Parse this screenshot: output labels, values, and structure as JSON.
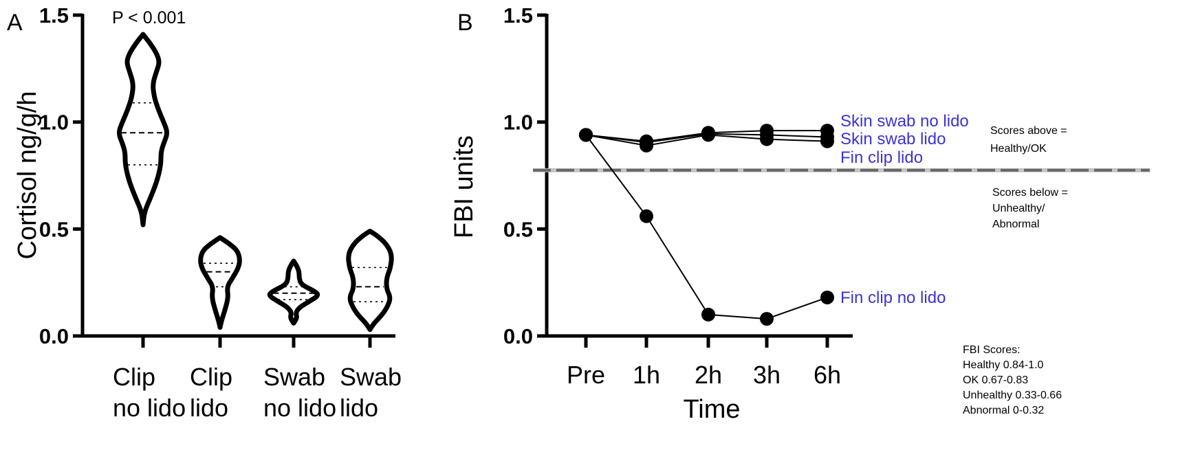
{
  "panels": {
    "a": "A",
    "b": "B"
  },
  "chart_data": [
    {
      "type": "violin",
      "panel": "A",
      "ylabel": "Cortisol ng/g/h",
      "ylim": [
        0,
        1.5
      ],
      "yticks": [
        0.0,
        0.5,
        1.0,
        1.5
      ],
      "ytick_labels": [
        "0.0",
        "0.5",
        "1.0",
        "1.5"
      ],
      "categories": [
        {
          "line1": "Clip",
          "line2": "no lido"
        },
        {
          "line1": "Clip",
          "line2": "lido"
        },
        {
          "line1": "Swab",
          "line2": "no lido"
        },
        {
          "line1": "Swab",
          "line2": "lido"
        }
      ],
      "violins": [
        {
          "min": 0.52,
          "max": 1.41,
          "q1": 0.8,
          "median": 0.95,
          "q3": 1.09,
          "profile": [
            [
              0.52,
              0
            ],
            [
              0.58,
              2
            ],
            [
              0.64,
              10
            ],
            [
              0.72,
              20
            ],
            [
              0.8,
              26
            ],
            [
              0.86,
              26
            ],
            [
              0.9,
              30
            ],
            [
              0.95,
              36
            ],
            [
              1.0,
              30
            ],
            [
              1.06,
              22
            ],
            [
              1.12,
              16
            ],
            [
              1.18,
              14
            ],
            [
              1.24,
              20
            ],
            [
              1.28,
              24
            ],
            [
              1.32,
              20
            ],
            [
              1.37,
              10
            ],
            [
              1.41,
              0
            ]
          ]
        },
        {
          "min": 0.04,
          "max": 0.46,
          "q1": 0.23,
          "median": 0.3,
          "q3": 0.34,
          "profile": [
            [
              0.04,
              0
            ],
            [
              0.07,
              2
            ],
            [
              0.12,
              7
            ],
            [
              0.18,
              12
            ],
            [
              0.23,
              10
            ],
            [
              0.27,
              18
            ],
            [
              0.32,
              27
            ],
            [
              0.36,
              29
            ],
            [
              0.4,
              25
            ],
            [
              0.43,
              14
            ],
            [
              0.46,
              0
            ]
          ]
        },
        {
          "min": 0.06,
          "max": 0.35,
          "q1": 0.17,
          "median": 0.2,
          "q3": 0.23,
          "profile": [
            [
              0.06,
              0
            ],
            [
              0.085,
              5
            ],
            [
              0.11,
              3
            ],
            [
              0.135,
              9
            ],
            [
              0.16,
              22
            ],
            [
              0.19,
              37
            ],
            [
              0.21,
              30
            ],
            [
              0.24,
              11
            ],
            [
              0.27,
              8
            ],
            [
              0.3,
              8
            ],
            [
              0.325,
              5
            ],
            [
              0.35,
              0
            ]
          ]
        },
        {
          "min": 0.03,
          "max": 0.49,
          "q1": 0.16,
          "median": 0.23,
          "q3": 0.32,
          "profile": [
            [
              0.03,
              0
            ],
            [
              0.06,
              6
            ],
            [
              0.1,
              18
            ],
            [
              0.14,
              26
            ],
            [
              0.18,
              30
            ],
            [
              0.22,
              24
            ],
            [
              0.27,
              24
            ],
            [
              0.32,
              30
            ],
            [
              0.38,
              32
            ],
            [
              0.43,
              24
            ],
            [
              0.47,
              10
            ],
            [
              0.49,
              0
            ]
          ]
        }
      ],
      "annotation": "P < 0.001"
    },
    {
      "type": "line",
      "panel": "B",
      "xlabel": "Time",
      "ylabel": "FBI units",
      "ylim": [
        0,
        1.5
      ],
      "yticks": [
        0.0,
        0.5,
        1.0,
        1.5
      ],
      "ytick_labels": [
        "0.0",
        "0.5",
        "1.0",
        "1.5"
      ],
      "categories": [
        "Pre",
        "1h",
        "2h",
        "3h",
        "6h"
      ],
      "threshold": 0.775,
      "series": [
        {
          "name": "Skin swab no lido",
          "values": [
            0.94,
            0.91,
            0.95,
            0.96,
            0.96
          ]
        },
        {
          "name": "Skin swab lido",
          "values": [
            0.94,
            0.905,
            0.945,
            0.94,
            0.93
          ]
        },
        {
          "name": "Fin clip lido",
          "values": [
            0.94,
            0.89,
            0.94,
            0.92,
            0.91
          ]
        },
        {
          "name": "Fin clip no lido",
          "values": [
            0.94,
            0.56,
            0.1,
            0.08,
            0.18
          ]
        }
      ],
      "notes": {
        "above": [
          "Scores above =",
          "Healthy/OK"
        ],
        "below": [
          "Scores below =",
          "Unhealthy/",
          "Abnormal"
        ],
        "legend": [
          "FBI Scores:",
          "Healthy 0.84-1.0",
          "OK 0.67-0.83",
          "Unhealthy 0.33-0.66",
          "Abnormal 0-0.32"
        ]
      }
    }
  ]
}
